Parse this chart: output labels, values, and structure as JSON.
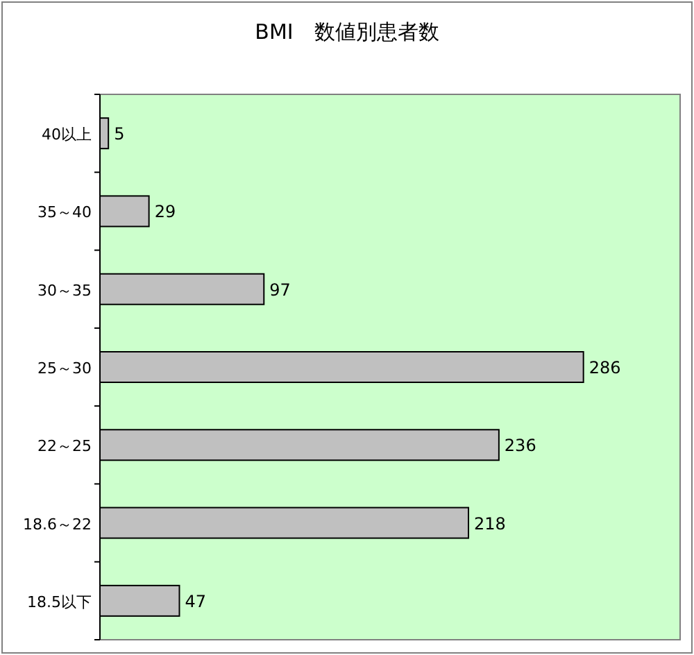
{
  "chart_data": {
    "type": "bar",
    "orientation": "horizontal",
    "title": "BMI　数値別患者数",
    "categories": [
      "40以上",
      "35～40",
      "30～35",
      "25～30",
      "22～25",
      "18.6～22",
      "18.5以下"
    ],
    "values": [
      5,
      29,
      97,
      286,
      236,
      218,
      47
    ],
    "color": "#c0c0c0",
    "data_labels": true
  }
}
